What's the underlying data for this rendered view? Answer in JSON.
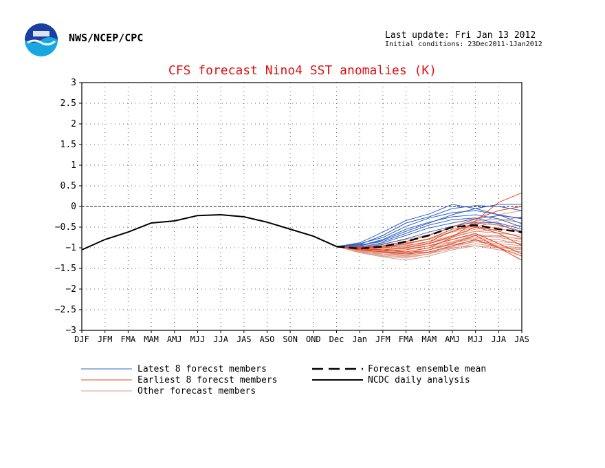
{
  "header": {
    "org": "NWS/NCEP/CPC",
    "last_update": "Last update: Fri Jan 13 2012",
    "initial_conditions": "Initial conditions: 23Dec2011-1Jan2012",
    "logo": "noaa-logo"
  },
  "colors": {
    "title": "#e01010",
    "latest": "#3060c8",
    "earliest": "#e84820",
    "other": "#d89888",
    "mean": "#000000",
    "analysis": "#000000"
  },
  "chart_data": {
    "type": "line",
    "title": "CFS forecast Nino4 SST anomalies (K)",
    "xlabel": "",
    "ylabel": "",
    "categories": [
      "DJF",
      "JFM",
      "FMA",
      "MAM",
      "AMJ",
      "MJJ",
      "JJA",
      "JAS",
      "ASO",
      "SON",
      "OND",
      "Dec",
      "Jan",
      "JFM",
      "FMA",
      "MAM",
      "AMJ",
      "MJJ",
      "JJA",
      "JAS"
    ],
    "ylim": [
      -3,
      3
    ],
    "yticks": [
      "3",
      "2.5",
      "2",
      "1.5",
      "1",
      "0.5",
      "0",
      "−0.5",
      "−1",
      "−1.5",
      "−2",
      "−2.5",
      "−3"
    ],
    "grid": true,
    "zero_line": true,
    "legend_position": "bottom",
    "legend": {
      "latest": "Latest 8 forecst members",
      "earliest": "Earliest 8 forecst members",
      "other": "Other forecast members",
      "mean": "Forecast ensemble mean",
      "analysis": "NCDC daily analysis"
    },
    "analysis": {
      "x": [
        0,
        1,
        2,
        3,
        4,
        5,
        6,
        7,
        8,
        9,
        10,
        11
      ],
      "values": [
        -1.05,
        -0.8,
        -0.62,
        -0.4,
        -0.35,
        -0.22,
        -0.2,
        -0.25,
        -0.38,
        -0.55,
        -0.72,
        -0.97
      ]
    },
    "ensemble_mean": {
      "x": [
        11,
        12,
        13,
        14,
        15,
        16,
        17,
        18,
        19
      ],
      "values": [
        -0.97,
        -1.02,
        -0.97,
        -0.85,
        -0.7,
        -0.5,
        -0.45,
        -0.55,
        -0.62
      ]
    },
    "latest_members": [
      {
        "values": [
          -0.97,
          -0.88,
          -0.62,
          -0.34,
          -0.18,
          0.05,
          -0.05,
          -0.2,
          -0.3
        ]
      },
      {
        "values": [
          -0.97,
          -0.92,
          -0.7,
          -0.4,
          -0.25,
          -0.05,
          0.02,
          0.0,
          -0.1
        ]
      },
      {
        "values": [
          -0.97,
          -0.9,
          -0.75,
          -0.48,
          -0.28,
          -0.15,
          -0.1,
          -0.2,
          -0.42
        ]
      },
      {
        "values": [
          -0.97,
          -0.95,
          -0.8,
          -0.55,
          -0.38,
          -0.25,
          -0.2,
          -0.3,
          -0.5
        ]
      },
      {
        "values": [
          -0.97,
          -0.93,
          -0.85,
          -0.65,
          -0.45,
          -0.32,
          -0.28,
          -0.42,
          -0.65
        ]
      },
      {
        "values": [
          -0.97,
          -0.98,
          -0.88,
          -0.7,
          -0.52,
          -0.4,
          -0.3,
          -0.22,
          -0.28
        ]
      },
      {
        "values": [
          -0.97,
          -0.96,
          -0.82,
          -0.6,
          -0.4,
          -0.2,
          -0.05,
          0.05,
          0.05
        ]
      },
      {
        "values": [
          -0.97,
          -1.0,
          -0.92,
          -0.78,
          -0.62,
          -0.48,
          -0.38,
          -0.4,
          -0.55
        ]
      }
    ],
    "earliest_members": [
      {
        "values": [
          -0.97,
          -1.02,
          -1.05,
          -1.1,
          -1.0,
          -0.75,
          -0.35,
          0.1,
          0.33
        ]
      },
      {
        "values": [
          -0.97,
          -1.05,
          -1.1,
          -1.12,
          -1.05,
          -0.9,
          -0.7,
          -1.0,
          -1.3
        ]
      },
      {
        "values": [
          -0.97,
          -1.0,
          -1.0,
          -0.95,
          -0.85,
          -0.6,
          -0.4,
          -0.45,
          -0.6
        ]
      },
      {
        "values": [
          -0.97,
          -1.05,
          -1.08,
          -1.05,
          -0.95,
          -0.8,
          -0.65,
          -0.9,
          -1.15
        ]
      },
      {
        "values": [
          -0.97,
          -1.0,
          -0.95,
          -0.85,
          -0.7,
          -0.5,
          -0.3,
          -0.1,
          0.0
        ]
      },
      {
        "values": [
          -0.97,
          -1.03,
          -1.05,
          -1.0,
          -0.9,
          -0.72,
          -0.5,
          -0.65,
          -0.95
        ]
      },
      {
        "values": [
          -0.97,
          -0.98,
          -0.98,
          -0.9,
          -0.78,
          -0.55,
          -0.48,
          -0.6,
          -0.75
        ]
      },
      {
        "values": [
          -0.97,
          -1.02,
          -1.1,
          -1.15,
          -1.1,
          -0.95,
          -0.8,
          -1.0,
          -1.2
        ]
      }
    ],
    "other_members": [
      {
        "values": [
          -0.97,
          -1.05,
          -1.15,
          -1.2,
          -1.1,
          -1.0,
          -0.95,
          -1.0,
          -1.05
        ]
      },
      {
        "values": [
          -0.97,
          -1.1,
          -1.2,
          -1.25,
          -1.15,
          -0.95,
          -0.85,
          -0.9,
          -0.95
        ]
      },
      {
        "values": [
          -0.97,
          -1.08,
          -1.12,
          -1.18,
          -1.05,
          -0.85,
          -0.75,
          -0.7,
          -0.8
        ]
      },
      {
        "values": [
          -0.97,
          -1.0,
          -1.05,
          -1.0,
          -0.9,
          -0.75,
          -0.6,
          -0.55,
          -0.6
        ]
      },
      {
        "values": [
          -0.97,
          -1.05,
          -1.1,
          -1.05,
          -0.95,
          -0.85,
          -0.7,
          -0.75,
          -0.85
        ]
      },
      {
        "values": [
          -0.97,
          -1.12,
          -1.22,
          -1.3,
          -1.2,
          -1.05,
          -0.95,
          -1.05,
          -1.1
        ]
      },
      {
        "values": [
          -0.97,
          -1.0,
          -0.95,
          -0.88,
          -0.8,
          -0.62,
          -0.5,
          -0.35,
          -0.25
        ]
      },
      {
        "values": [
          -0.97,
          -1.02,
          -1.0,
          -0.95,
          -0.85,
          -0.7,
          -0.55,
          -0.5,
          -0.45
        ]
      },
      {
        "values": [
          -0.97,
          -1.05,
          -1.08,
          -1.1,
          -1.0,
          -0.88,
          -0.78,
          -0.8,
          -0.92
        ]
      },
      {
        "values": [
          -0.97,
          -1.1,
          -1.15,
          -1.18,
          -1.12,
          -0.98,
          -0.85,
          -0.95,
          -1.0
        ]
      },
      {
        "values": [
          -0.97,
          -0.98,
          -0.9,
          -0.8,
          -0.68,
          -0.5,
          -0.35,
          -0.3,
          -0.4
        ]
      },
      {
        "values": [
          -0.97,
          -1.03,
          -1.02,
          -0.98,
          -0.88,
          -0.72,
          -0.6,
          -0.65,
          -0.7
        ]
      },
      {
        "values": [
          -0.97,
          -1.06,
          -1.12,
          -1.15,
          -1.05,
          -0.92,
          -0.82,
          -0.85,
          -0.9
        ]
      },
      {
        "values": [
          -0.97,
          -1.0,
          -0.98,
          -0.92,
          -0.78,
          -0.6,
          -0.45,
          -0.2,
          -0.1
        ]
      },
      {
        "values": [
          -0.97,
          -1.08,
          -1.18,
          -1.22,
          -1.15,
          -1.02,
          -0.9,
          -0.98,
          -1.02
        ]
      },
      {
        "values": [
          -0.97,
          -1.02,
          -1.05,
          -1.02,
          -0.95,
          -0.8,
          -0.68,
          -0.72,
          -0.78
        ]
      }
    ]
  }
}
